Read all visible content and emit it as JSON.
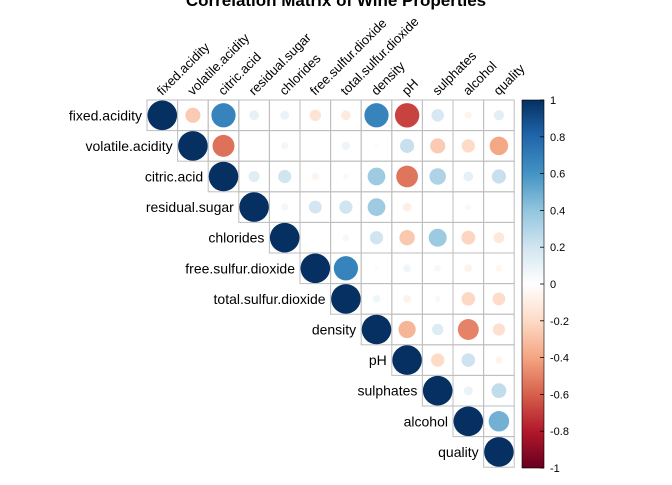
{
  "chart_data": {
    "type": "heatmap",
    "subtype": "correlation-matrix-circles-upper",
    "title": "Correlation Matrix of Wine Properties",
    "variables": [
      "fixed.acidity",
      "volatile.acidity",
      "citric.acid",
      "residual.sugar",
      "chlorides",
      "free.sulfur.dioxide",
      "total.sulfur.dioxide",
      "density",
      "pH",
      "sulphates",
      "alcohol",
      "quality"
    ],
    "matrix": [
      [
        1.0,
        -0.26,
        0.67,
        0.11,
        0.09,
        -0.15,
        -0.11,
        0.67,
        -0.68,
        0.18,
        -0.06,
        0.12
      ],
      [
        -0.26,
        1.0,
        -0.55,
        0.0,
        0.06,
        -0.01,
        0.08,
        0.02,
        0.23,
        -0.26,
        -0.2,
        -0.39
      ],
      [
        0.67,
        -0.55,
        1.0,
        0.14,
        0.2,
        -0.06,
        0.04,
        0.36,
        -0.54,
        0.31,
        0.11,
        0.23
      ],
      [
        0.11,
        0.0,
        0.14,
        1.0,
        0.06,
        0.19,
        0.2,
        0.36,
        -0.09,
        0.01,
        0.04,
        0.01
      ],
      [
        0.09,
        0.06,
        0.2,
        0.06,
        1.0,
        0.01,
        0.05,
        0.2,
        -0.27,
        0.37,
        -0.22,
        -0.13
      ],
      [
        -0.15,
        -0.01,
        -0.06,
        0.19,
        0.01,
        1.0,
        0.67,
        -0.02,
        0.07,
        0.05,
        -0.07,
        -0.05
      ],
      [
        -0.11,
        0.08,
        0.04,
        0.2,
        0.05,
        0.67,
        1.0,
        0.07,
        -0.07,
        0.04,
        -0.21,
        -0.19
      ],
      [
        0.67,
        0.02,
        0.36,
        0.36,
        0.2,
        -0.02,
        0.07,
        1.0,
        -0.34,
        0.15,
        -0.5,
        -0.17
      ],
      [
        -0.68,
        0.23,
        -0.54,
        -0.09,
        -0.27,
        0.07,
        -0.07,
        -0.34,
        1.0,
        -0.2,
        0.21,
        -0.06
      ],
      [
        0.18,
        -0.26,
        0.31,
        0.01,
        0.37,
        0.05,
        0.04,
        0.15,
        -0.2,
        1.0,
        0.09,
        0.25
      ],
      [
        -0.06,
        -0.2,
        0.11,
        0.04,
        -0.22,
        -0.07,
        -0.21,
        -0.5,
        0.21,
        0.09,
        1.0,
        0.48
      ],
      [
        0.12,
        -0.39,
        0.23,
        0.01,
        -0.13,
        -0.05,
        -0.19,
        -0.17,
        -0.06,
        0.25,
        0.48,
        1.0
      ]
    ],
    "display": "upper-triangle",
    "glyph": "circle",
    "color_scale": {
      "range": [
        -1,
        1
      ],
      "ticks": [
        -1,
        -0.8,
        -0.6,
        -0.4,
        -0.2,
        0,
        0.2,
        0.4,
        0.6,
        0.8,
        1
      ],
      "tick_labels": [
        "-1",
        "-0.8",
        "-0.6",
        "-0.4",
        "-0.2",
        "0",
        "0.2",
        "0.4",
        "0.6",
        "0.8",
        "1"
      ],
      "stops": [
        {
          "value": -1.0,
          "color": "#67001F"
        },
        {
          "value": -0.8,
          "color": "#B2182B"
        },
        {
          "value": -0.6,
          "color": "#D6604D"
        },
        {
          "value": -0.4,
          "color": "#F4A582"
        },
        {
          "value": -0.2,
          "color": "#FDDBC7"
        },
        {
          "value": 0.0,
          "color": "#FFFFFF"
        },
        {
          "value": 0.2,
          "color": "#D1E5F0"
        },
        {
          "value": 0.4,
          "color": "#92C5DE"
        },
        {
          "value": 0.6,
          "color": "#4393C3"
        },
        {
          "value": 0.8,
          "color": "#2166AC"
        },
        {
          "value": 1.0,
          "color": "#053061"
        }
      ]
    },
    "legend": "right",
    "grid": true,
    "grid_color": "#BEBEBE"
  }
}
